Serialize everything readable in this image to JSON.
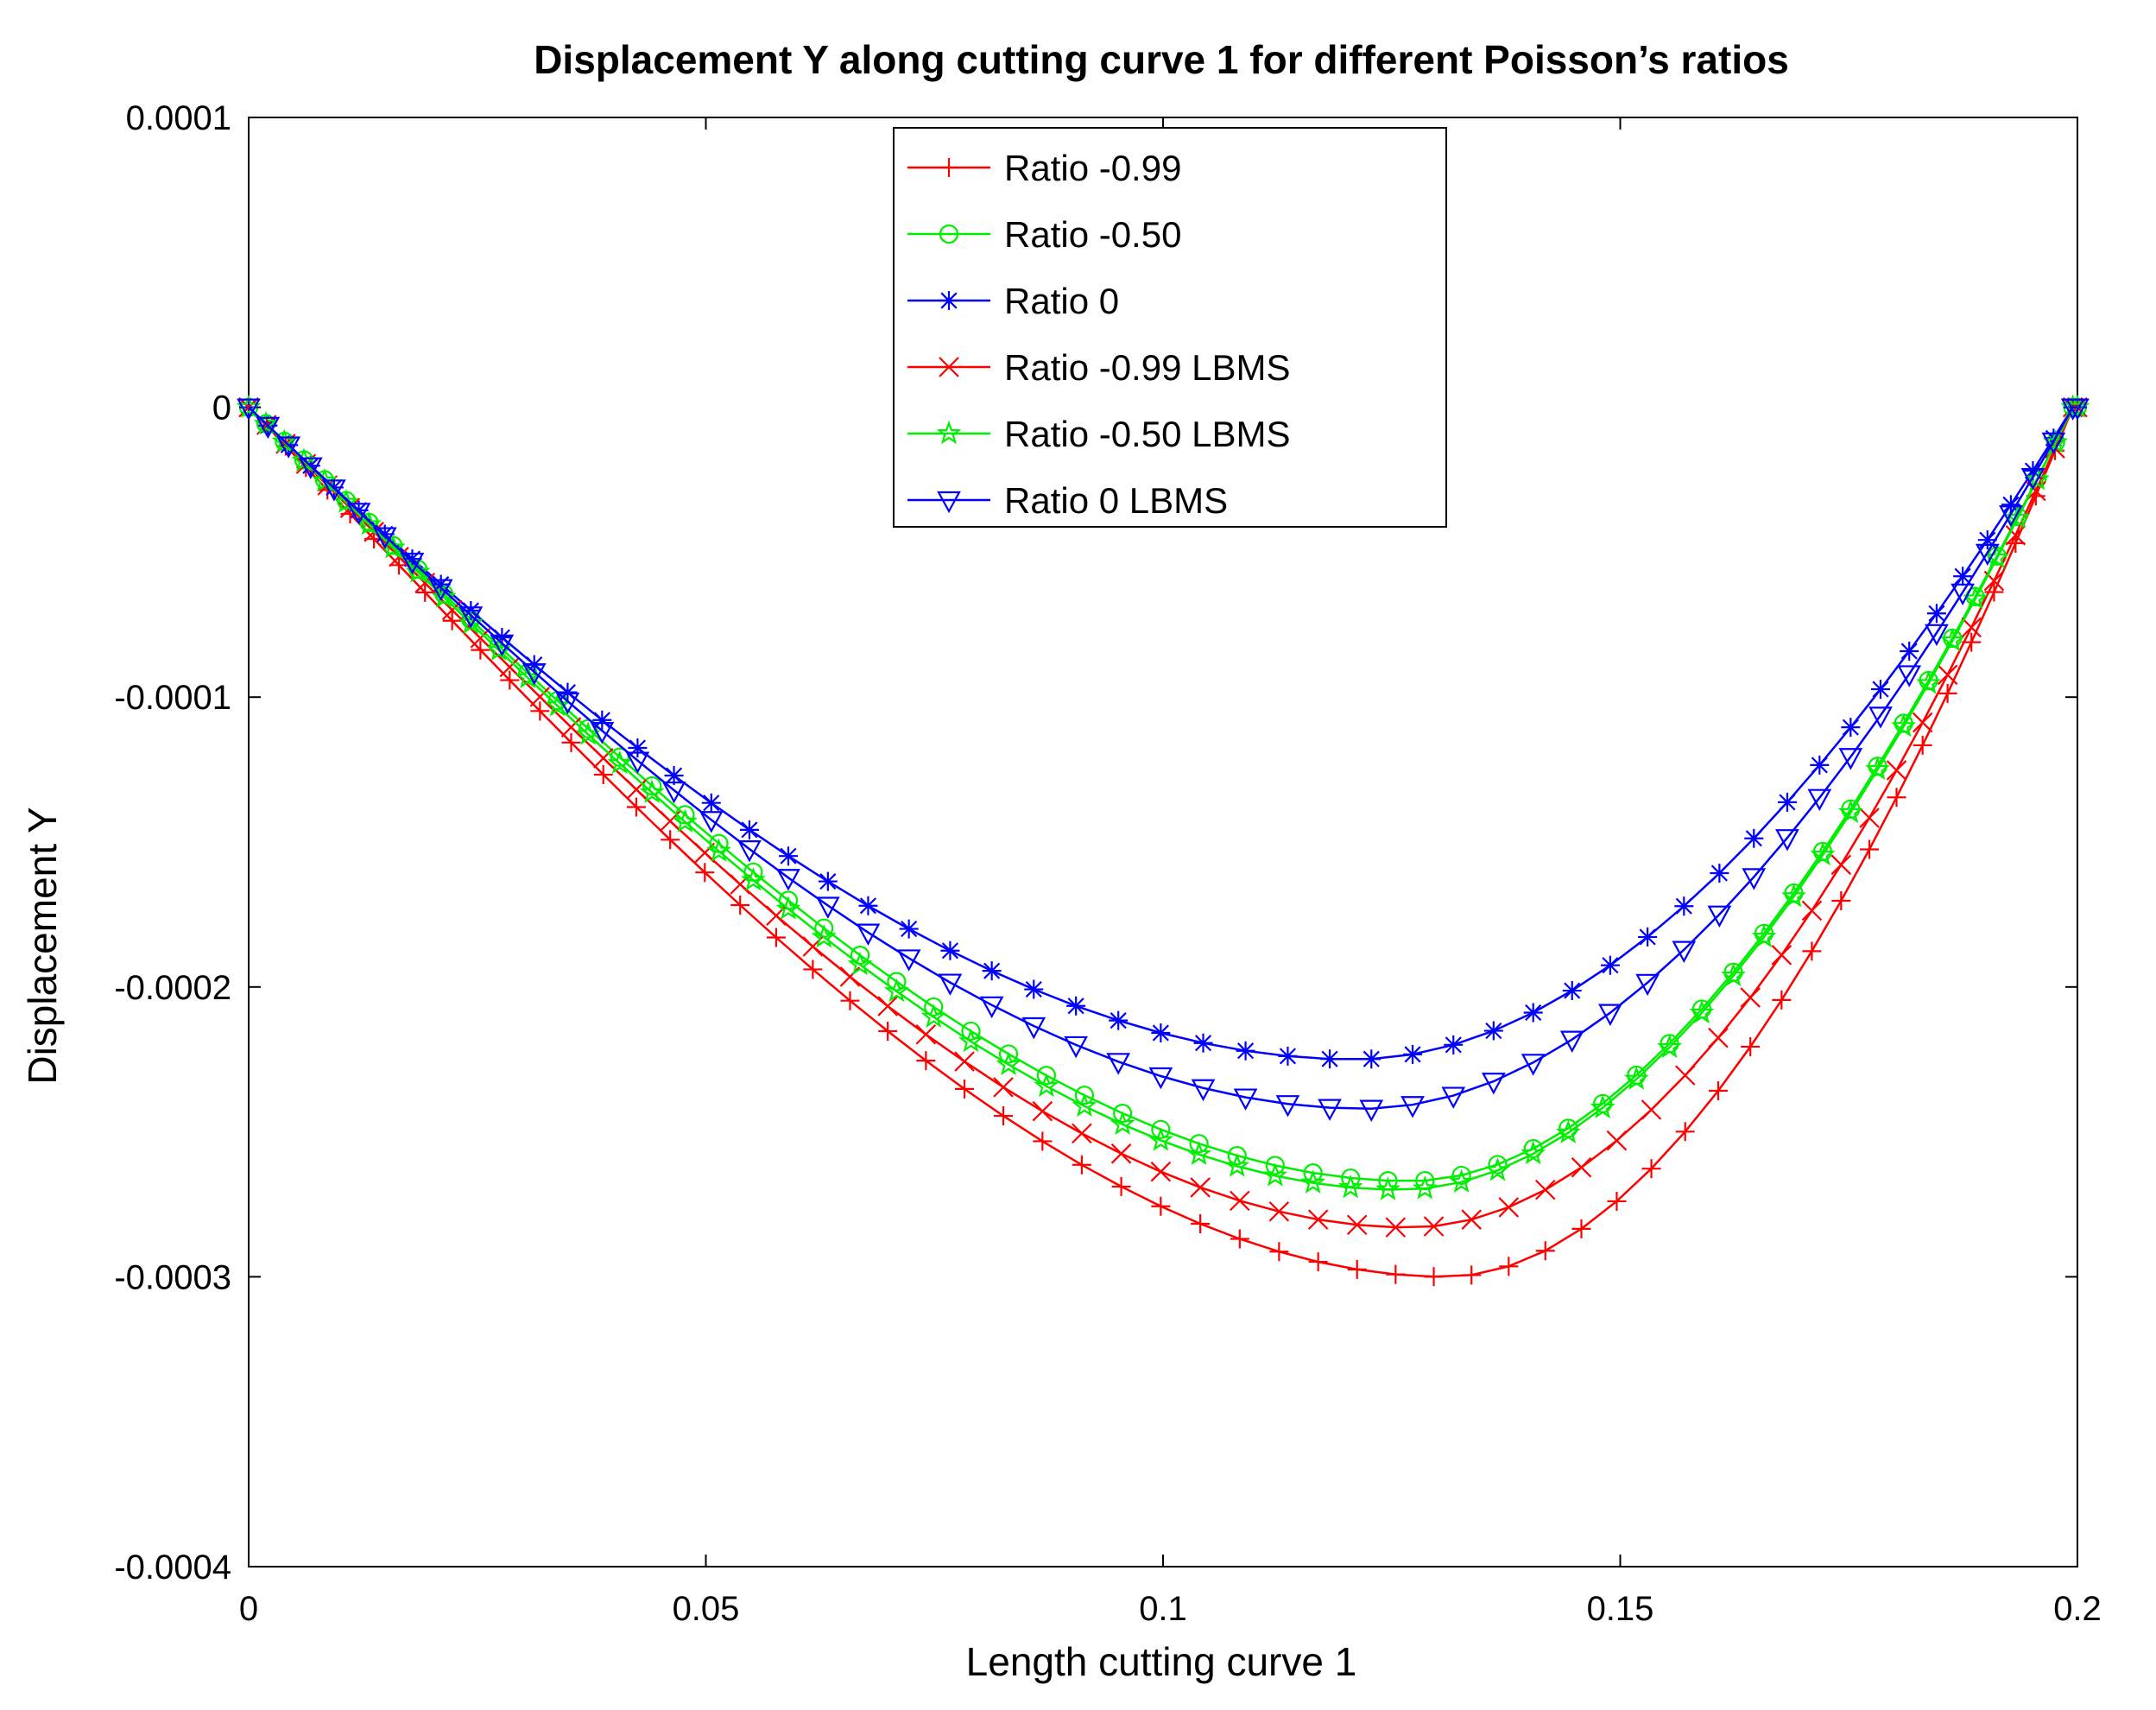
{
  "chart_data": {
    "type": "line",
    "title": "Displacement Y along cutting curve 1 for different Poisson’s ratios",
    "xlabel": "Length cutting curve 1",
    "ylabel": "Displacement Y",
    "xlim": [
      0,
      0.2
    ],
    "ylim": [
      -0.0004,
      0.0001
    ],
    "xticks": [
      0,
      0.05,
      0.1,
      0.15,
      0.2
    ],
    "xtick_labels": [
      "0",
      "0.05",
      "0.1",
      "0.15",
      "0.2"
    ],
    "yticks": [
      0.0001,
      0,
      -0.0001,
      -0.0002,
      -0.0003,
      -0.0004
    ],
    "ytick_labels": [
      "0.0001",
      "0",
      "-0.0001",
      "-0.0002",
      "-0.0003",
      "-0.0004"
    ],
    "legend_position": "top-center",
    "series": [
      {
        "name": "Ratio -0.99",
        "color": "#ff0000",
        "marker": "plus",
        "n": 59,
        "min_x": 0.131,
        "min_y": -0.0003,
        "end_x": 0.1995,
        "start_slope": -0.0033,
        "end_slope": 0.0077
      },
      {
        "name": "Ratio -0.50",
        "color": "#00ee00",
        "marker": "circle",
        "n": 61,
        "min_x": 0.127,
        "min_y": -0.000267,
        "end_x": 0.1995,
        "start_slope": -0.003,
        "end_slope": 0.0064
      },
      {
        "name": "Ratio 0",
        "color": "#0000ff",
        "marker": "asterisk",
        "n": 55,
        "min_x": 0.121,
        "min_y": -0.000225,
        "end_x": 0.1995,
        "start_slope": -0.003,
        "end_slope": 0.0051
      },
      {
        "name": "Ratio -0.99 LBMS",
        "color": "#ff0000",
        "marker": "x",
        "n": 59,
        "min_x": 0.127,
        "min_y": -0.000283,
        "end_x": 0.1995,
        "start_slope": -0.0031,
        "end_slope": 0.0073
      },
      {
        "name": "Ratio -0.50 LBMS",
        "color": "#00ee00",
        "marker": "star",
        "n": 61,
        "min_x": 0.126,
        "min_y": -0.00027,
        "end_x": 0.1995,
        "start_slope": -0.00305,
        "end_slope": 0.0065
      },
      {
        "name": "Ratio 0 LBMS",
        "color": "#0000ff",
        "marker": "triangle-down",
        "n": 55,
        "min_x": 0.122,
        "min_y": -0.000242,
        "end_x": 0.1995,
        "start_slope": -0.003,
        "end_slope": 0.0056
      }
    ]
  }
}
